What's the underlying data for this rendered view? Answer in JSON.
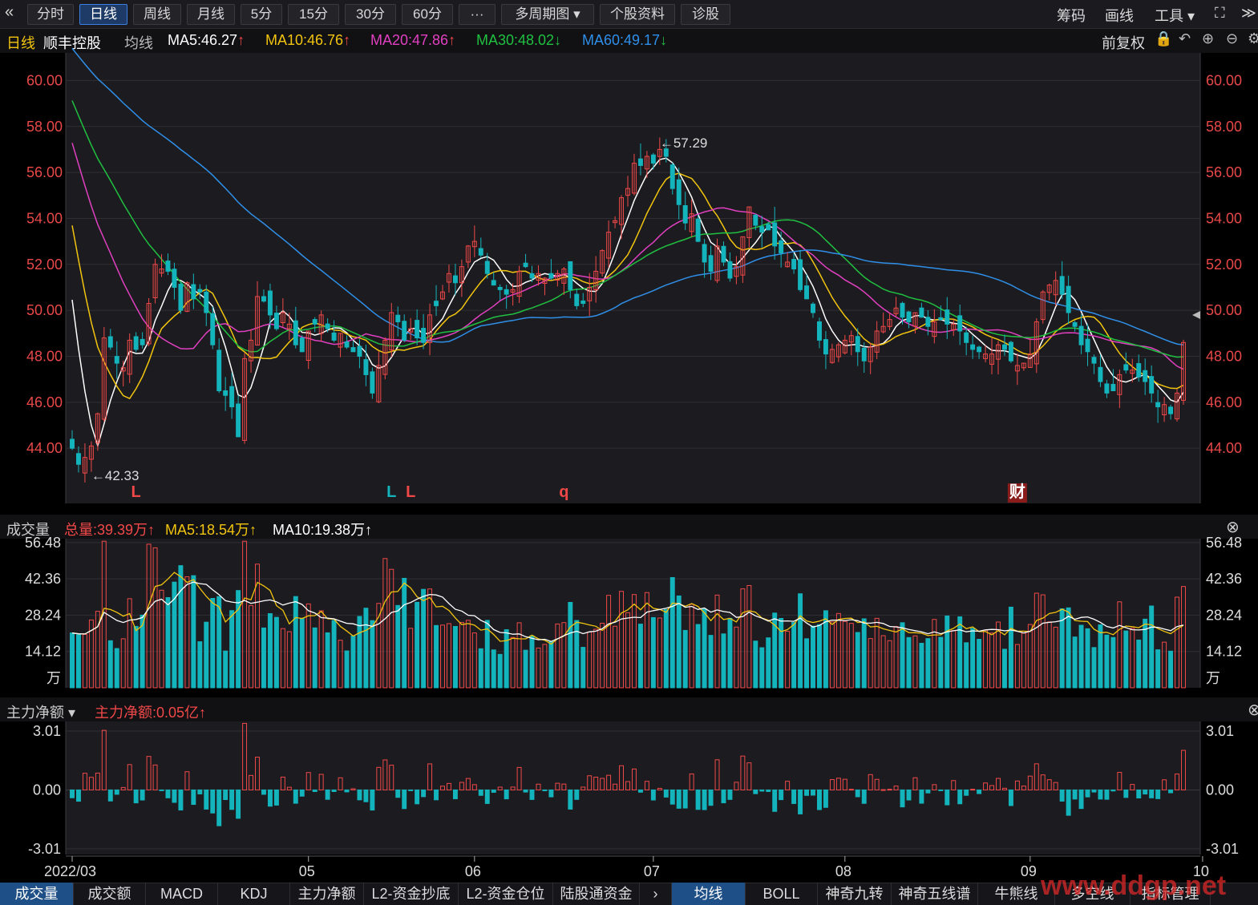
{
  "toolbar": {
    "back_icon": "double-chevron-left-icon",
    "buttons": [
      "分时",
      "日线",
      "周线",
      "月线",
      "5分",
      "15分",
      "30分",
      "60分",
      "···",
      "多周期图 ▾",
      "个股资料",
      "诊股"
    ],
    "active": "日线",
    "right": [
      "筹码",
      "画线",
      "工具 ▾"
    ]
  },
  "title": {
    "period": "日线",
    "stock": "顺丰控股",
    "ma_label": "均线",
    "ma": [
      {
        "label": "MA5:46.27",
        "arrow": "↑",
        "color": "#ffffff"
      },
      {
        "label": "MA10:46.76",
        "arrow": "↑",
        "color": "#f2c40f"
      },
      {
        "label": "MA20:47.86",
        "arrow": "↑",
        "color": "#e040c0"
      },
      {
        "label": "MA30:48.02",
        "arrow": "↓",
        "color": "#20c040"
      },
      {
        "label": "MA60:49.17",
        "arrow": "↓",
        "color": "#2f8fe8"
      }
    ],
    "adjust": "前复权"
  },
  "volume_header": {
    "label": "成交量",
    "total": "总量:39.39万↑",
    "ma5": "MA5:18.54万↑",
    "ma10": "MA10:19.38万↑"
  },
  "flow_header": {
    "label": "主力净额 ▾",
    "value": "主力净额:0.05亿↑"
  },
  "bottom_tabs_left": [
    "成交量",
    "成交额",
    "MACD",
    "KDJ",
    "主力净额",
    "L2-资金抄底",
    "L2-资金仓位",
    "陆股通资金"
  ],
  "bottom_tabs_right": [
    "均线",
    "BOLL",
    "神奇九转",
    "神奇五线谱",
    "牛熊线",
    "多空线",
    "指标管理"
  ],
  "watermark": "www.ddgp.net",
  "colors": {
    "up": "#f04848",
    "down": "#14b4bc",
    "ma5": "#ffffff",
    "ma10": "#f2c40f",
    "ma20": "#e040c0",
    "ma30": "#20c040",
    "ma60": "#2f8fe8",
    "price_label": "#e84848"
  },
  "chart_data": {
    "type": "candlestick",
    "price_axis": {
      "ticks": [
        60,
        58,
        56,
        54,
        52,
        50,
        48,
        46,
        44
      ],
      "labels": [
        "60.00",
        "58.00",
        "56.00",
        "54.00",
        "52.00",
        "50.00",
        "48.00",
        "46.00",
        "44.00"
      ],
      "range": [
        41.6,
        61.2
      ]
    },
    "x_labels": [
      "2022/03",
      "05",
      "06",
      "07",
      "08",
      "09",
      "10"
    ],
    "x_label_index": [
      0,
      37,
      63,
      91,
      121,
      150,
      177
    ],
    "annotations": {
      "high": "←57.29",
      "low": "←42.33",
      "markers": [
        "L",
        "L",
        "L",
        "q",
        "财"
      ]
    },
    "marker_index": [
      10,
      50,
      53,
      77,
      148
    ],
    "marker_color": [
      "#f04848",
      "#14b4bc",
      "#f04848",
      "#f04848",
      "#f04848"
    ],
    "closes": [
      44,
      43.3,
      43.6,
      44.1,
      45.5,
      48.8,
      48.4,
      47.7,
      47.5,
      48.7,
      48.3,
      48.5,
      50.3,
      52,
      51.8,
      51.7,
      51,
      50,
      51.2,
      50.5,
      50.8,
      49.9,
      48.5,
      46.5,
      46.3,
      45.8,
      44.5,
      47.9,
      48.7,
      50.6,
      50.4,
      49.8,
      49.2,
      49.9,
      49.4,
      48.5,
      48.2,
      49.1,
      49.4,
      49.8,
      49.2,
      48.7,
      49,
      48.4,
      48.2,
      48,
      47.2,
      46.4,
      47.6,
      48.7,
      49.9,
      49.5,
      48.7,
      49.2,
      48.8,
      48.6,
      49.8,
      50.2,
      50.8,
      51.6,
      51.2,
      51.9,
      52.8,
      53,
      52.4,
      51.6,
      51.1,
      50.9,
      50.7,
      50.9,
      51.7,
      51.9,
      51.4,
      51.6,
      51.4,
      51.4,
      51.6,
      51.8,
      50.9,
      50.2,
      50.3,
      51,
      51.7,
      52.6,
      53.4,
      53.9,
      54.9,
      55.3,
      56.4,
      56.3,
      56.7,
      56.4,
      57,
      56.7,
      55.3,
      54.6,
      53.8,
      54.2,
      53,
      52.1,
      51.7,
      52.8,
      52.1,
      51.4,
      51.9,
      53.2,
      54.5,
      53.7,
      53.4,
      53.5,
      52.8,
      52.5,
      52.1,
      51.8,
      50.9,
      50.5,
      49.9,
      48.7,
      48.1,
      48.3,
      48.5,
      48.7,
      48.9,
      48.2,
      47.8,
      48.4,
      49.1,
      49.3,
      49.6,
      50.1,
      49.7,
      49.5,
      49.9,
      49.7,
      49.3,
      49.5,
      49.6,
      49.4,
      49.4,
      49.1,
      48.6,
      48.3,
      48.2,
      48.1,
      48.1,
      48.5,
      48.3,
      47.8,
      47.6,
      47.7,
      48.1,
      49.5,
      50.8,
      51.1,
      51.3,
      50.7,
      49.9,
      49.3,
      48.5,
      48.2,
      47.7,
      46.9,
      46.4,
      46.5,
      47.2,
      47.4,
      47.4,
      47.1,
      46.9,
      46.4,
      45.8,
      45.9,
      45.5,
      46.4,
      48.6
    ],
    "volume": {
      "ticks": [
        56.48,
        42.36,
        28.24,
        14.12
      ],
      "labels": [
        "56.48",
        "42.36",
        "28.24",
        "14.12"
      ],
      "unit": "万",
      "range": [
        0,
        58
      ],
      "last": 39.39
    },
    "net_flow": {
      "ticks": [
        3.01,
        0,
        -3.01
      ],
      "labels": [
        "3.01",
        "0.00",
        "-3.01"
      ],
      "range": [
        -3.3,
        3.5
      ]
    }
  }
}
